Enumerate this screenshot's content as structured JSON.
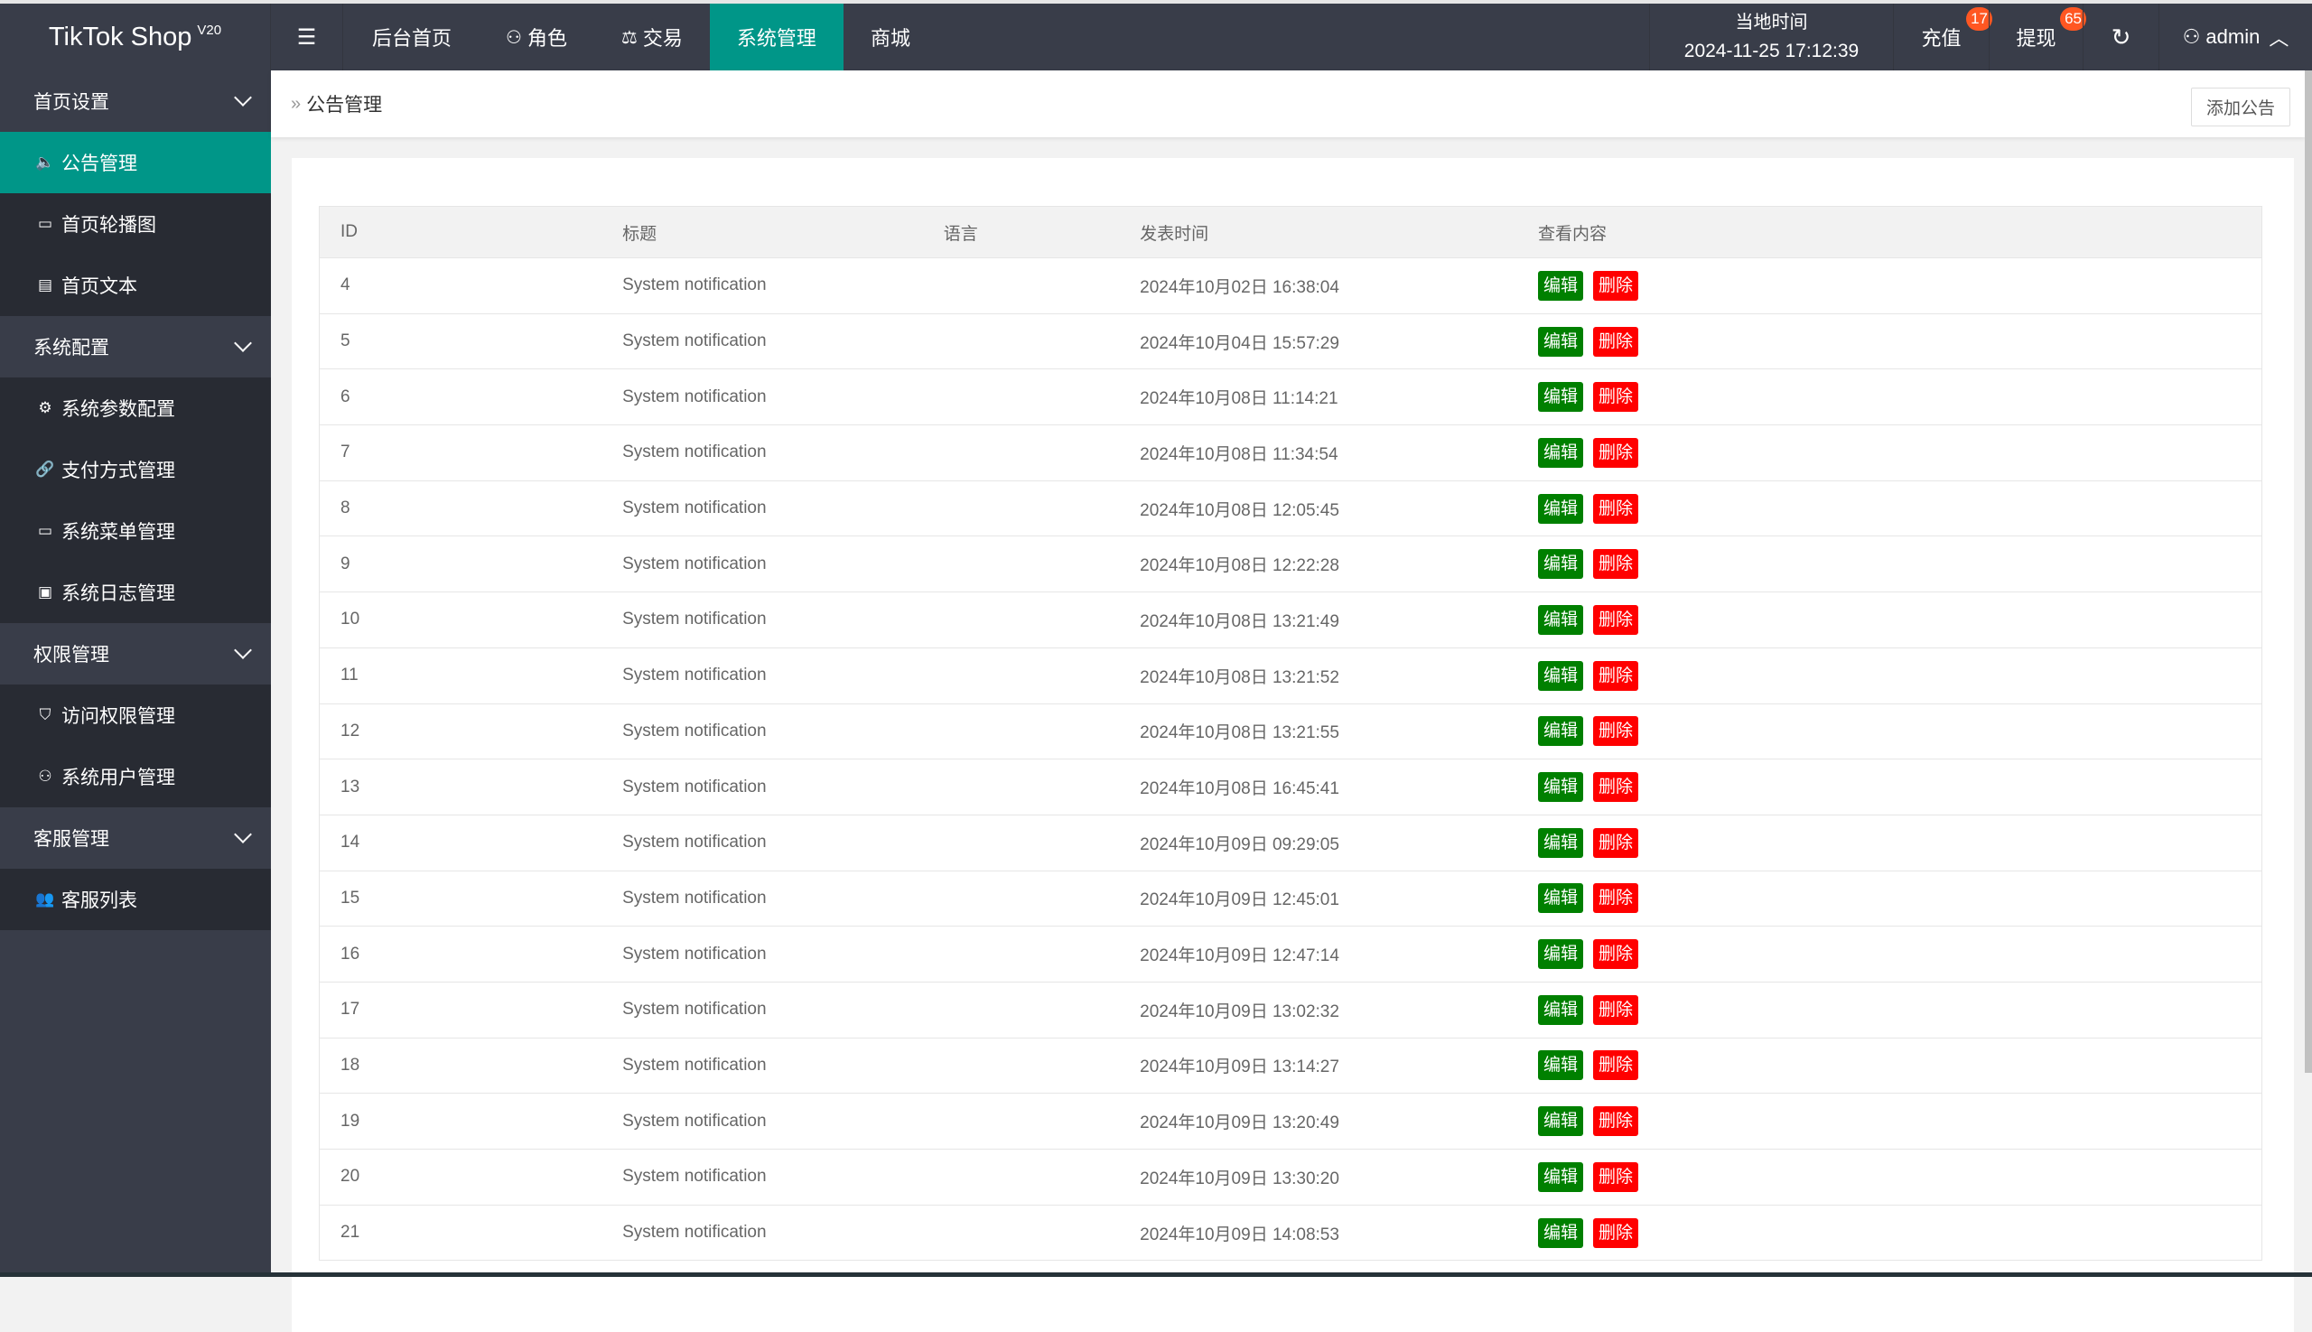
{
  "app": {
    "title": "TikTok Shop",
    "version": "V20"
  },
  "topnav": {
    "menu_icon": "hamburger-icon",
    "items": [
      {
        "label": "后台首页",
        "icon": ""
      },
      {
        "label": "角色",
        "icon": "user-icon"
      },
      {
        "label": "交易",
        "icon": "scale-icon"
      },
      {
        "label": "系统管理",
        "icon": "",
        "active": true
      },
      {
        "label": "商城",
        "icon": ""
      }
    ]
  },
  "header_right": {
    "time_label": "当地时间",
    "time_value": "2024-11-25 17:12:39",
    "recharge": "充值",
    "recharge_badge": "17",
    "withdraw": "提现",
    "withdraw_badge": "65",
    "user": "admin"
  },
  "sidebar": {
    "groups": [
      {
        "label": "首页设置",
        "items": [
          {
            "label": "公告管理",
            "icon": "speaker-icon",
            "active": true
          },
          {
            "label": "首页轮播图",
            "icon": "image-icon"
          },
          {
            "label": "首页文本",
            "icon": "document-icon"
          }
        ]
      },
      {
        "label": "系统配置",
        "items": [
          {
            "label": "系统参数配置",
            "icon": "gear-icon"
          },
          {
            "label": "支付方式管理",
            "icon": "link-icon"
          },
          {
            "label": "系统菜单管理",
            "icon": "window-icon"
          },
          {
            "label": "系统日志管理",
            "icon": "clipboard-icon"
          }
        ]
      },
      {
        "label": "权限管理",
        "items": [
          {
            "label": "访问权限管理",
            "icon": "shield-icon"
          },
          {
            "label": "系统用户管理",
            "icon": "user-icon"
          }
        ]
      },
      {
        "label": "客服管理",
        "items": [
          {
            "label": "客服列表",
            "icon": "users-icon"
          }
        ]
      }
    ]
  },
  "breadcrumb": {
    "current": "公告管理",
    "add_button": "添加公告"
  },
  "table": {
    "columns": [
      "ID",
      "标题",
      "语言",
      "发表时间",
      "查看内容"
    ],
    "edit_label": "编辑",
    "delete_label": "删除",
    "rows": [
      [
        "4",
        "System notification",
        "",
        "2024年10月02日 16:38:04"
      ],
      [
        "5",
        "System notification",
        "",
        "2024年10月04日 15:57:29"
      ],
      [
        "6",
        "System notification",
        "",
        "2024年10月08日 11:14:21"
      ],
      [
        "7",
        "System notification",
        "",
        "2024年10月08日 11:34:54"
      ],
      [
        "8",
        "System notification",
        "",
        "2024年10月08日 12:05:45"
      ],
      [
        "9",
        "System notification",
        "",
        "2024年10月08日 12:22:28"
      ],
      [
        "10",
        "System notification",
        "",
        "2024年10月08日 13:21:49"
      ],
      [
        "11",
        "System notification",
        "",
        "2024年10月08日 13:21:52"
      ],
      [
        "12",
        "System notification",
        "",
        "2024年10月08日 13:21:55"
      ],
      [
        "13",
        "System notification",
        "",
        "2024年10月08日 16:45:41"
      ],
      [
        "14",
        "System notification",
        "",
        "2024年10月09日 09:29:05"
      ],
      [
        "15",
        "System notification",
        "",
        "2024年10月09日 12:45:01"
      ],
      [
        "16",
        "System notification",
        "",
        "2024年10月09日 12:47:14"
      ],
      [
        "17",
        "System notification",
        "",
        "2024年10月09日 13:02:32"
      ],
      [
        "18",
        "System notification",
        "",
        "2024年10月09日 13:14:27"
      ],
      [
        "19",
        "System notification",
        "",
        "2024年10月09日 13:20:49"
      ],
      [
        "20",
        "System notification",
        "",
        "2024年10月09日 13:30:20"
      ],
      [
        "21",
        "System notification",
        "",
        "2024年10月09日 14:08:53"
      ]
    ]
  },
  "colors": {
    "topbar": "#393D49",
    "accent": "#009688",
    "edit": "#008000",
    "delete": "#FF0000",
    "badge": "#FF5722"
  }
}
